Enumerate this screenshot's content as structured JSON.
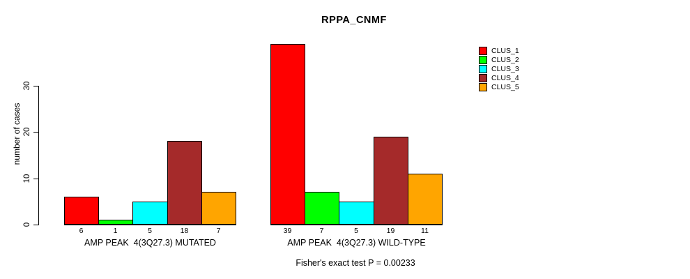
{
  "chart_data": {
    "type": "bar",
    "title": "RPPA_CNMF",
    "ylabel": "number of cases",
    "xlabel": "",
    "yticks": [
      0,
      10,
      20,
      30
    ],
    "ylim": [
      0,
      40
    ],
    "grid": false,
    "legend_position": "right",
    "series": [
      "CLUS_1",
      "CLUS_2",
      "CLUS_3",
      "CLUS_4",
      "CLUS_5"
    ],
    "colors": [
      "#FF0000",
      "#00FF00",
      "#00FFFF",
      "#A52A2A",
      "#FFA500"
    ],
    "groups": [
      {
        "label": "AMP PEAK  4(3Q27.3) MUTATED",
        "values": [
          6,
          1,
          5,
          18,
          7
        ]
      },
      {
        "label": "AMP PEAK  4(3Q27.3) WILD-TYPE",
        "values": [
          39,
          7,
          5,
          19,
          11
        ]
      }
    ],
    "annotation": "Fisher's exact test P = 0.00233"
  }
}
